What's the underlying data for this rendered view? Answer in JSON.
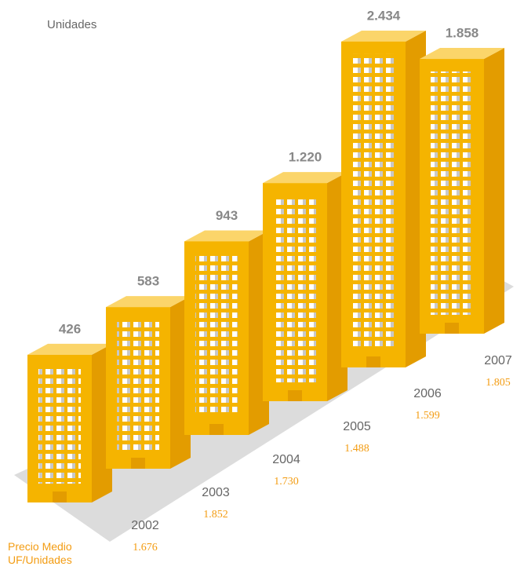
{
  "chart_data": {
    "type": "bar",
    "categories": [
      "2002",
      "2003",
      "2004",
      "2005",
      "2006",
      "2007"
    ],
    "series": [
      {
        "name": "Unidades",
        "color": "#f5b400",
        "values": [
          426,
          583,
          943,
          1220,
          2434,
          1858
        ],
        "value_labels": [
          "426",
          "583",
          "943",
          "1.220",
          "2.434",
          "1.858"
        ]
      },
      {
        "name": "Precio Medio UF/Unidades",
        "color": "#f39c12",
        "values": [
          1676,
          1852,
          1730,
          1488,
          1599,
          1805
        ],
        "value_labels": [
          "1.676",
          "1.852",
          "1.730",
          "1.488",
          "1.599",
          "1.805"
        ]
      }
    ]
  }
}
